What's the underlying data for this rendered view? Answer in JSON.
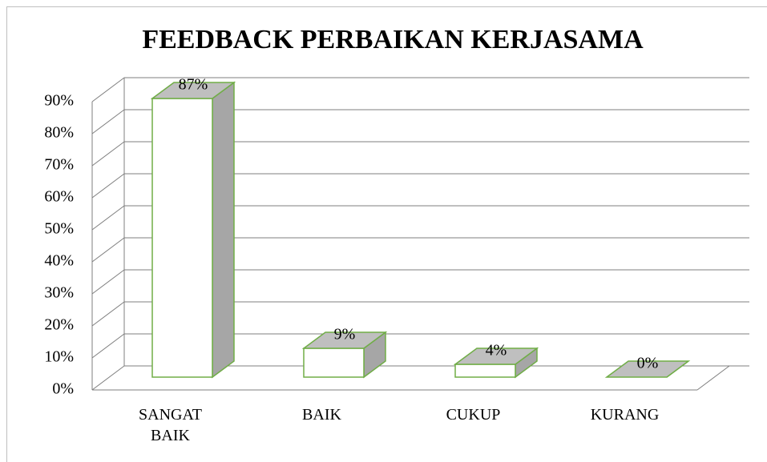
{
  "chart_data": {
    "type": "bar3d",
    "title": "FEEDBACK PERBAIKAN KERJASAMA",
    "categories": [
      "SANGAT BAIK",
      "BAIK",
      "CUKUP",
      "KURANG"
    ],
    "values": [
      87,
      9,
      4,
      0
    ],
    "value_labels": [
      "87%",
      "9%",
      "4%",
      "0%"
    ],
    "color": "#ffffff",
    "edge_color": "#70ad47",
    "ylim": [
      0,
      90
    ],
    "yticks": [
      {
        "value": 0,
        "label": "0%"
      },
      {
        "value": 10,
        "label": "10%"
      },
      {
        "value": 20,
        "label": "20%"
      },
      {
        "value": 30,
        "label": "30%"
      },
      {
        "value": 40,
        "label": "40%"
      },
      {
        "value": 50,
        "label": "50%"
      },
      {
        "value": 60,
        "label": "60%"
      },
      {
        "value": 70,
        "label": "70%"
      },
      {
        "value": 80,
        "label": "80%"
      },
      {
        "value": 90,
        "label": "90%"
      }
    ],
    "grid": true
  }
}
